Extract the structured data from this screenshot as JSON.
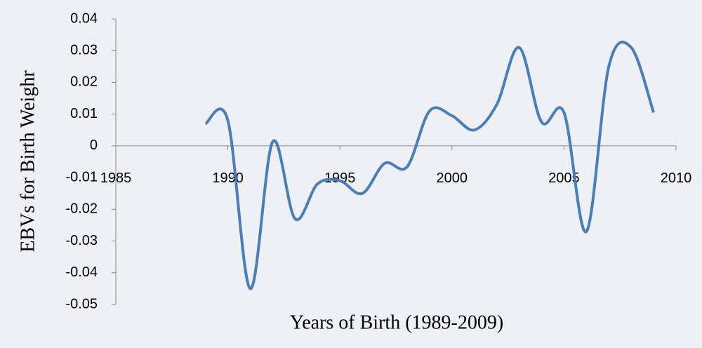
{
  "chart_data": {
    "type": "line",
    "x_label": "Years of Birth (1989-2009)",
    "y_label": "EBVs for Birth Weighr",
    "x": [
      1989,
      1990,
      1991,
      1992,
      1993,
      1994,
      1995,
      1996,
      1997,
      1998,
      1999,
      2000,
      2001,
      2002,
      2003,
      2004,
      2005,
      2006,
      2007,
      2008,
      2009
    ],
    "series": [
      {
        "name": "EBVs",
        "color": "#4a7ebb",
        "values": [
          0.007,
          0.008,
          -0.045,
          0.0013,
          -0.023,
          -0.012,
          -0.011,
          -0.015,
          -0.0055,
          -0.0066,
          0.011,
          0.0095,
          0.005,
          0.013,
          0.031,
          0.0075,
          0.0105,
          -0.027,
          0.025,
          0.031,
          0.0105
        ]
      }
    ],
    "xlim": [
      1985,
      2010
    ],
    "xticks": [
      1985,
      1990,
      1995,
      2000,
      2005,
      2010
    ],
    "ylim": [
      -0.05,
      0.04
    ],
    "yticks": [
      -0.05,
      -0.04,
      -0.03,
      -0.02,
      -0.01,
      0,
      0.01,
      0.02,
      0.03,
      0.04
    ],
    "smooth": true
  }
}
